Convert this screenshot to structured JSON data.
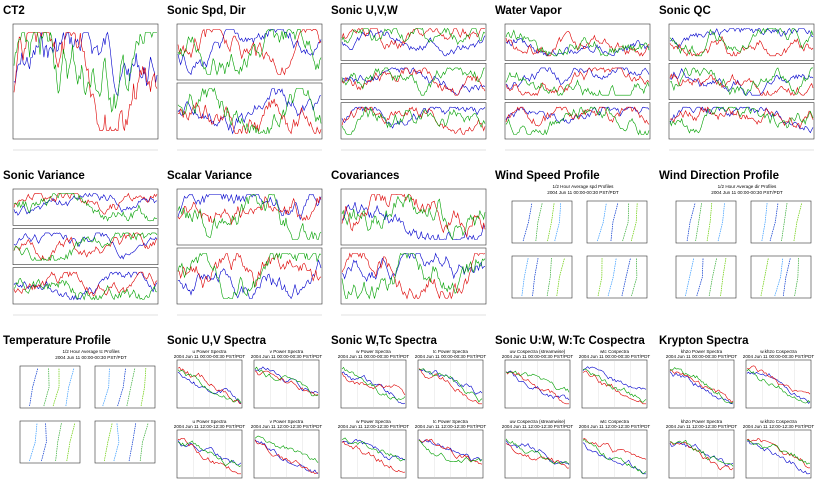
{
  "panels": [
    {
      "title": "CT2",
      "kind": "timeseries",
      "rows": 1
    },
    {
      "title": "Sonic Spd, Dir",
      "kind": "timeseries",
      "rows": 2
    },
    {
      "title": "Sonic U,V,W",
      "kind": "timeseries",
      "rows": 3
    },
    {
      "title": "Water Vapor",
      "kind": "timeseries",
      "rows": 3
    },
    {
      "title": "Sonic QC",
      "kind": "timeseries",
      "rows": 3
    },
    {
      "title": "Sonic Variance",
      "kind": "timeseries",
      "rows": 3
    },
    {
      "title": "Scalar Variance",
      "kind": "timeseries",
      "rows": 2
    },
    {
      "title": "Covariances",
      "kind": "timeseries",
      "rows": 2
    },
    {
      "title": "Wind Speed Profile",
      "kind": "profile",
      "header": [
        "1/2 Hour Average spd Profiles",
        "2004 Jun 11 00:00-00:30 PST/PDT"
      ]
    },
    {
      "title": "Wind Direction Profile",
      "kind": "profile",
      "header": [
        "1/2 Hour Average dir Profiles",
        "2004 Jun 11 00:00-00:30 PST/PDT"
      ]
    },
    {
      "title": "Temperature Profile",
      "kind": "profile",
      "header": [
        "1/2 Hour Average tc Profiles",
        "2004 Jun 11 00:00-00:30 PST/PDT"
      ]
    },
    {
      "title": "Sonic U,V Spectra",
      "kind": "spectra",
      "sub_titles": [
        "u Power Spectra",
        "v Power Spectra"
      ],
      "times": [
        "2004 Jun 11 00:00-00:30 PST/PDT",
        "2004 Jun 11 12:00-12:30 PST/PDT"
      ]
    },
    {
      "title": "Sonic W,Tc Spectra",
      "kind": "spectra",
      "sub_titles": [
        "w Power Spectra",
        "tc Power Spectra"
      ],
      "times": [
        "2004 Jun 11 00:00-00:30 PST/PDT",
        "2004 Jun 11 12:00-12:30 PST/PDT"
      ]
    },
    {
      "title": "Sonic U:W, W:Tc Cospectra",
      "kind": "spectra",
      "sub_titles": [
        "uw Cospectra (streamwise)",
        "wtc Cospectra"
      ],
      "times": [
        "2004 Jun 11 00:00-00:30 PST/PDT",
        "2004 Jun 11 12:00-12:30 PST/PDT"
      ]
    },
    {
      "title": "Krypton Spectra",
      "kind": "spectra",
      "sub_titles": [
        "kh2o Power Spectra",
        "w.kh2o Cospectra"
      ],
      "times": [
        "2004 Jun 11 00:00-00:30 PST/PDT",
        "2004 Jun 11 12:00-12:30 PST/PDT"
      ]
    }
  ]
}
